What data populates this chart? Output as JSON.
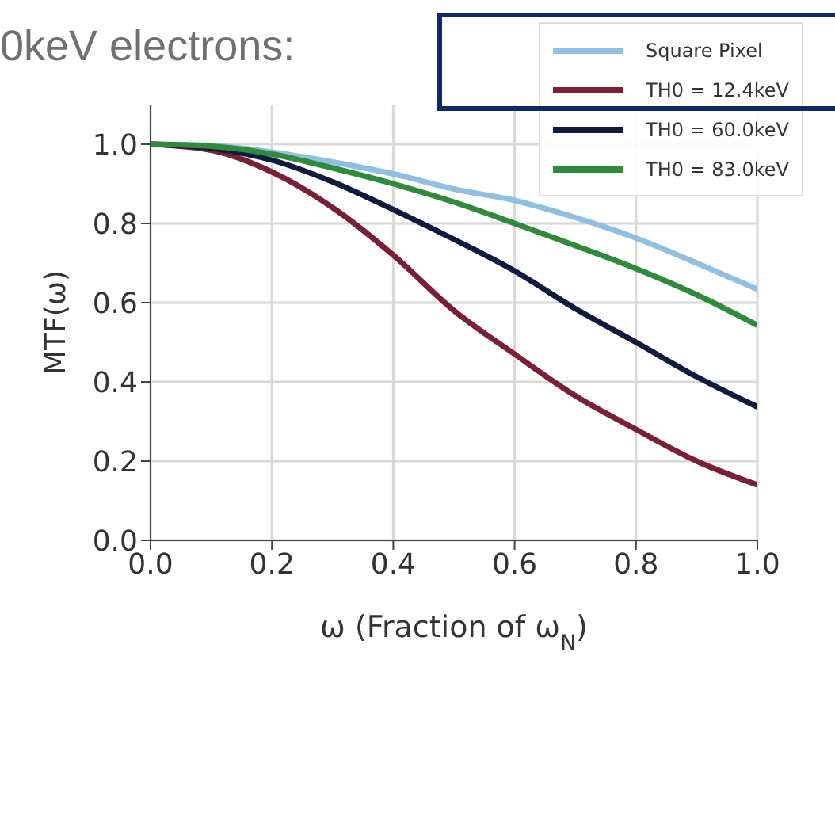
{
  "chart_data": {
    "type": "line",
    "title": "0keV electrons:",
    "xlabel": "ω (Fraction of ω$_{N}$)",
    "ylabel": "MTF(ω)",
    "x": [
      0,
      0.1,
      0.2,
      0.3,
      0.4,
      0.5,
      0.6,
      0.7,
      0.8,
      0.9,
      1.0
    ],
    "series": [
      {
        "name": "Square Pixel",
        "color": "#8fc0e3",
        "values": [
          1.0,
          0.997,
          0.98,
          0.955,
          0.925,
          0.887,
          0.858,
          0.815,
          0.763,
          0.7,
          0.634
        ]
      },
      {
        "name": "TH0 = 12.4keV",
        "color": "#7a1f35",
        "values": [
          1.0,
          0.985,
          0.93,
          0.84,
          0.72,
          0.58,
          0.47,
          0.365,
          0.28,
          0.2,
          0.14
        ]
      },
      {
        "name": "TH0 = 60.0keV",
        "color": "#101a3e",
        "values": [
          1.0,
          0.99,
          0.96,
          0.905,
          0.835,
          0.76,
          0.68,
          0.585,
          0.5,
          0.413,
          0.337
        ]
      },
      {
        "name": "TH0 = 83.0keV",
        "color": "#2e8b3a",
        "values": [
          1.0,
          0.995,
          0.975,
          0.94,
          0.9,
          0.854,
          0.8,
          0.744,
          0.686,
          0.62,
          0.543
        ]
      }
    ],
    "xlim": [
      0,
      1.0
    ],
    "xticks": [
      {
        "value": 0,
        "label": "0.0"
      },
      {
        "value": 0.2,
        "label": "0.2"
      },
      {
        "value": 0.4,
        "label": "0.4"
      },
      {
        "value": 0.6,
        "label": "0.6"
      },
      {
        "value": 0.8,
        "label": "0.8"
      },
      {
        "value": 1.0,
        "label": "1.0"
      }
    ],
    "ylim": [
      0,
      1.1
    ],
    "yticks": [
      {
        "value": 0,
        "label": "0.0"
      },
      {
        "value": 0.2,
        "label": "0.2"
      },
      {
        "value": 0.4,
        "label": "0.4"
      },
      {
        "value": 0.6,
        "label": "0.6"
      },
      {
        "value": 0.8,
        "label": "0.8"
      },
      {
        "value": 1.0,
        "label": "1.0"
      }
    ],
    "grid": true,
    "legend": "top right",
    "marker": "none",
    "line_style": "solid"
  }
}
